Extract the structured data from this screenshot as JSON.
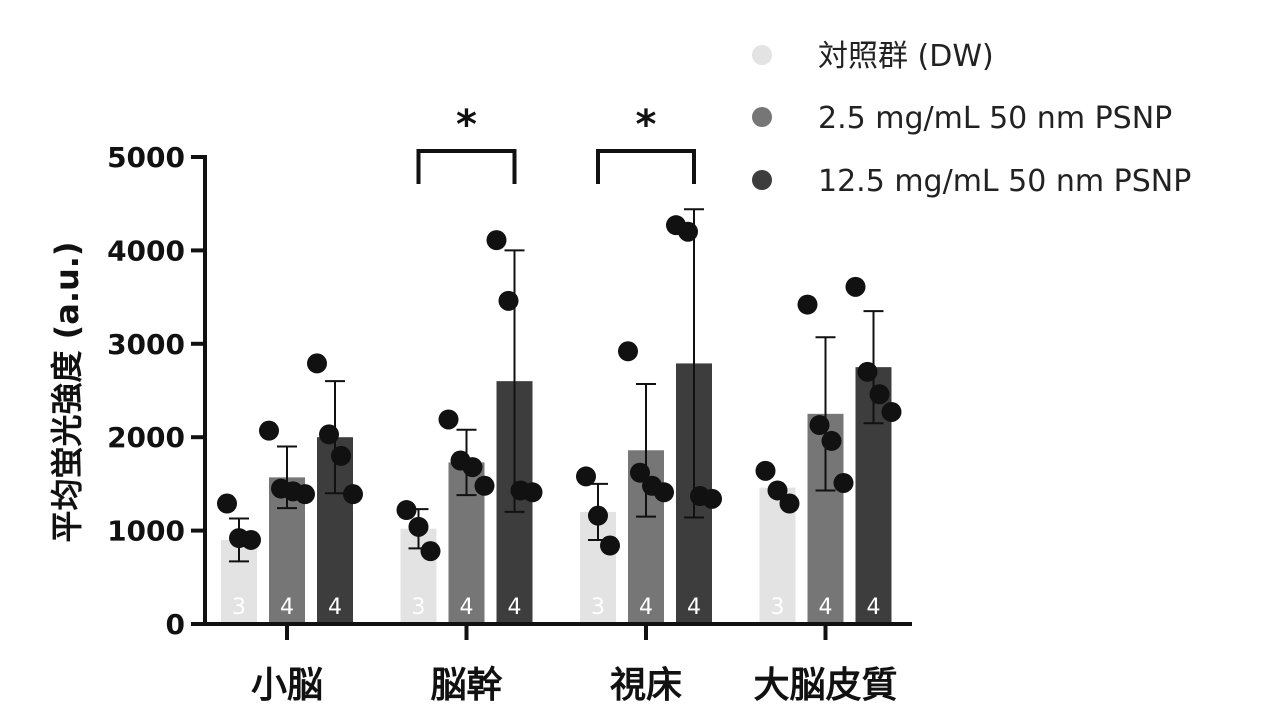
{
  "chart_data": {
    "type": "bar",
    "categories": [
      "小脳",
      "脳幹",
      "視床",
      "大脳皮質"
    ],
    "ylabel": "平均蛍光強度 (a.u.)",
    "xlabel": "",
    "ylim": [
      0,
      5000
    ],
    "yticks": [
      0,
      1000,
      2000,
      3000,
      4000,
      5000
    ],
    "colors": [
      "#e3e3e3",
      "#767676",
      "#3d3d3d"
    ],
    "point_color": "#111111",
    "series": [
      {
        "name": "対照群 (DW)",
        "values": [
          900,
          1020,
          1200,
          1460
        ],
        "error": [
          230,
          210,
          300,
          0
        ],
        "points": [
          [
            1290,
            920,
            900
          ],
          [
            1220,
            1040,
            780
          ],
          [
            1580,
            1160,
            840
          ],
          [
            1640,
            1430,
            1290
          ]
        ],
        "n": [
          3,
          3,
          3,
          3
        ]
      },
      {
        "name": "2.5 mg/mL 50 nm PSNP",
        "values": [
          1570,
          1730,
          1860,
          2250
        ],
        "error": [
          330,
          350,
          710,
          820
        ],
        "points": [
          [
            2070,
            1450,
            1420,
            1390
          ],
          [
            2190,
            1750,
            1680,
            1480
          ],
          [
            2920,
            1620,
            1480,
            1410
          ],
          [
            3420,
            2130,
            1960,
            1510
          ]
        ],
        "n": [
          4,
          4,
          4,
          4
        ]
      },
      {
        "name": "12.5 mg/mL 50 nm PSNP",
        "values": [
          2000,
          2600,
          2790,
          2750
        ],
        "error": [
          600,
          1400,
          1650,
          600
        ],
        "points": [
          [
            2790,
            2030,
            1800,
            1390
          ],
          [
            4110,
            3460,
            1430,
            1410
          ],
          [
            4270,
            4200,
            1370,
            1340
          ],
          [
            3610,
            2700,
            2460,
            2270
          ]
        ],
        "n": [
          4,
          4,
          4,
          4
        ]
      }
    ],
    "significance": [
      {
        "category": "脳幹",
        "from_series": 0,
        "to_series": 2,
        "label": "*"
      },
      {
        "category": "視床",
        "from_series": 0,
        "to_series": 2,
        "label": "*"
      }
    ],
    "legend_position": "top-right"
  }
}
